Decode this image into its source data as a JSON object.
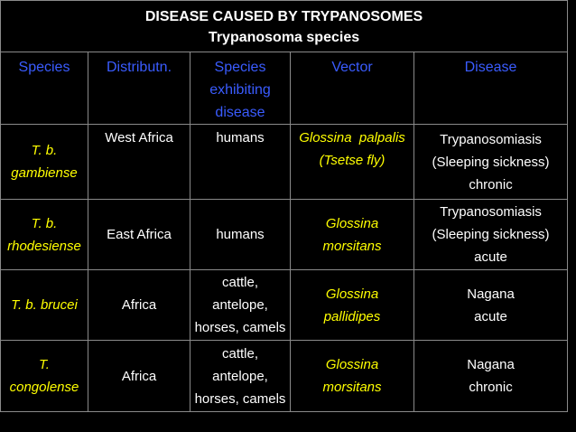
{
  "title": {
    "main": "DISEASE CAUSED BY TRYPANOSOMES",
    "sub": "Trypanosoma species"
  },
  "headers": {
    "species": "Species",
    "distribution": "Distributn.",
    "host": [
      "Species",
      "exhibiting",
      "disease"
    ],
    "vector": "Vector",
    "disease": "Disease"
  },
  "rows": [
    {
      "species": [
        "T. b.",
        "gambiense"
      ],
      "distribution": "West Africa",
      "host": [
        "humans"
      ],
      "vector": [
        "Glossina  palpalis",
        "(Tsetse fly)"
      ],
      "disease": [
        "Trypanosomiasis",
        "(Sleeping sickness)",
        "chronic"
      ]
    },
    {
      "species": [
        "T. b.",
        "rhodesiense"
      ],
      "distribution": "East Africa",
      "host": [
        "humans"
      ],
      "vector": [
        "Glossina",
        "morsitans"
      ],
      "disease": [
        "Trypanosomiasis",
        "(Sleeping sickness)",
        "acute"
      ]
    },
    {
      "species": [
        "T. b. brucei"
      ],
      "distribution": "Africa",
      "host": [
        "cattle,",
        "antelope,",
        "horses, camels"
      ],
      "vector": [
        "Glossina",
        "pallidipes"
      ],
      "disease": [
        "Nagana",
        "acute"
      ]
    },
    {
      "species": [
        "T.",
        "congolense"
      ],
      "distribution": "Africa",
      "host": [
        "cattle,",
        "antelope,",
        "horses, camels"
      ],
      "vector": [
        "Glossina",
        "morsitans"
      ],
      "disease": [
        "Nagana",
        "chronic"
      ]
    }
  ]
}
